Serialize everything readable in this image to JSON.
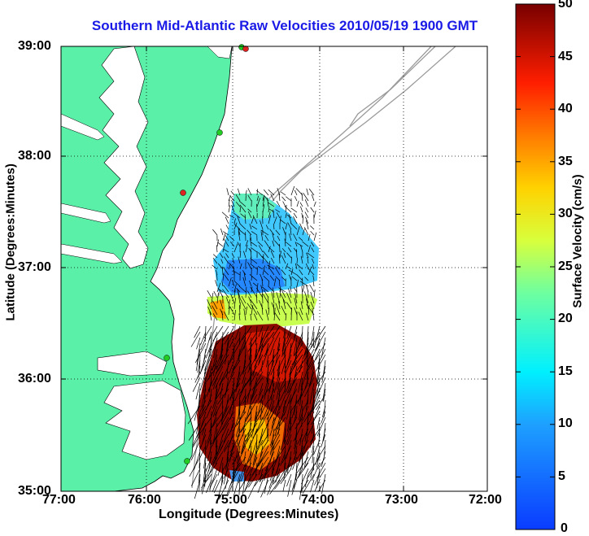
{
  "title": "Southern Mid-Atlantic Raw Velocities 2010/05/19 1900 GMT",
  "xlabel": "Longitude (Degrees:Minutes)",
  "ylabel": "Latitude (Degrees:Minutes)",
  "x_ticks": [
    "77:00",
    "76:00",
    "75:00",
    "74:00",
    "73:00",
    "72:00"
  ],
  "y_ticks": [
    "39:00",
    "38:00",
    "37:00",
    "36:00",
    "35:00"
  ],
  "colorbar": {
    "label": "Surface Velocity (cm/s)",
    "ticks": [
      "50",
      "45",
      "40",
      "35",
      "30",
      "25",
      "20",
      "15",
      "10",
      "5",
      "0"
    ]
  },
  "colors": {
    "land": "#5af0a8",
    "title": "#1a1ae6",
    "station_green": "#22cc22",
    "station_red": "#dd2222"
  }
}
